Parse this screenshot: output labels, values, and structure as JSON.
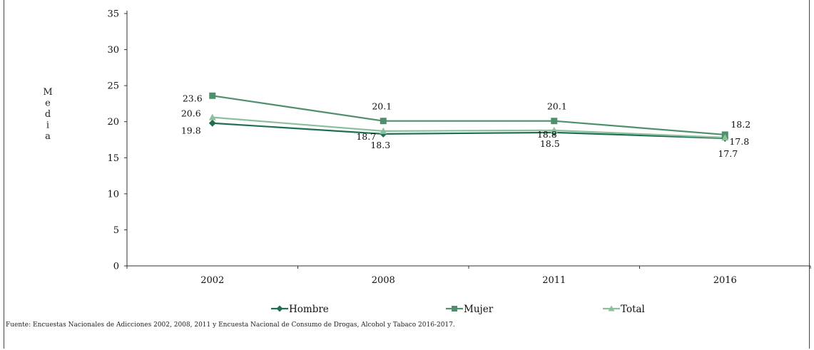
{
  "chart_data": {
    "type": "line",
    "title": "",
    "xlabel": "",
    "ylabel": "Media",
    "ylim": [
      0,
      35
    ],
    "yticks": [
      0,
      5,
      10,
      15,
      20,
      25,
      30,
      35
    ],
    "categories": [
      "2002",
      "2008",
      "2011",
      "2016"
    ],
    "series": [
      {
        "name": "Hombre",
        "values": [
          19.8,
          18.3,
          18.5,
          17.7
        ],
        "color": "#1f6f52",
        "marker": "diamond",
        "labels": [
          "19.8",
          "18.3",
          "18.5",
          "17.7"
        ]
      },
      {
        "name": "Mujer",
        "values": [
          23.6,
          20.1,
          20.1,
          18.2
        ],
        "color": "#4f8f6e",
        "marker": "square",
        "labels": [
          "23.6",
          "20.1",
          "20.1",
          "18.2"
        ]
      },
      {
        "name": "Total",
        "values": [
          20.6,
          18.7,
          18.8,
          17.8
        ],
        "color": "#8cbf9c",
        "marker": "triangle",
        "labels": [
          "20.6",
          "18.7",
          "18.8",
          "17.8"
        ]
      }
    ],
    "grid": false,
    "legend_position": "bottom"
  },
  "source_note": "Fuente: Encuestas Nacionales de Adicciones 2002, 2008, 2011 y Encuesta Nacional de Consumo de Drogas, Alcohol y Tabaco 2016-2017."
}
